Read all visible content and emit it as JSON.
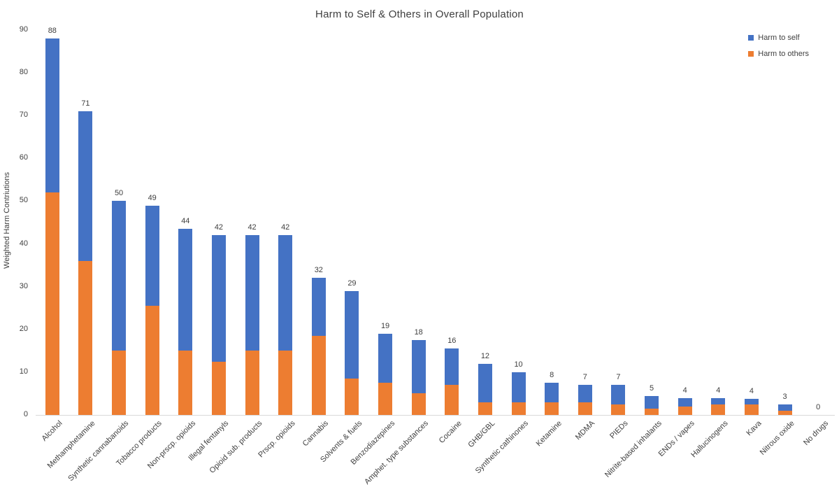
{
  "title": "Harm to Self & Others in Overall Population",
  "y_axis": {
    "title": "Weighted Harm Contriutions"
  },
  "legend": [
    {
      "label": "Harm to self",
      "color": "#4472C4"
    },
    {
      "label": "Harm to others",
      "color": "#ED7D31"
    }
  ],
  "colors": {
    "harm_to_self": "#4472C4",
    "harm_to_others": "#ED7D31",
    "axis_line": "#d9d9d9",
    "text": "#404040"
  },
  "chart_data": {
    "type": "bar",
    "stacked": true,
    "title": "Harm to Self & Others in Overall Population",
    "xlabel": "",
    "ylabel": "Weighted Harm Contriutions",
    "ylim": [
      0,
      90
    ],
    "yticks": [
      0,
      10,
      20,
      30,
      40,
      50,
      60,
      70,
      80,
      90
    ],
    "grid": false,
    "legend_position": "top-right",
    "categories": [
      "Alcohol",
      "Methamphetamine",
      "Synthetic cannabanoids",
      "Tobacco products",
      "Non-prscp. opioids",
      "Illegal fentanyls",
      "Opioid sub. products",
      "Prscp. opioids",
      "Cannabis",
      "Solvents & fuels",
      "Benzodiazepines",
      "Amphet. type substances",
      "Cocaine",
      "GHB/GBL",
      "Synthetic cathinones",
      "Ketamine",
      "MDMA",
      "PIEDs",
      "Nitrite-based inhalants",
      "ENDs / vapes",
      "Hallucinogens",
      "Kava",
      "Nitrous oxide",
      "No drugs"
    ],
    "series": [
      {
        "name": "Harm to others",
        "color": "#ED7D31",
        "values": [
          52,
          36,
          15,
          25.5,
          15,
          12.5,
          15,
          15,
          18.5,
          8.5,
          7.5,
          5,
          7,
          3,
          3,
          3,
          3,
          2.5,
          1.5,
          2,
          2.5,
          2.5,
          1,
          0
        ]
      },
      {
        "name": "Harm to self",
        "color": "#4472C4",
        "values": [
          36,
          35,
          35,
          23.5,
          28.5,
          29.5,
          27,
          27,
          13.5,
          20.5,
          11.5,
          12.5,
          8.5,
          9,
          7,
          4.5,
          4,
          4.5,
          3,
          2,
          1.5,
          1.2,
          1.5,
          0
        ]
      }
    ],
    "total_labels": [
      88,
      71,
      50,
      49,
      44,
      42,
      42,
      42,
      32,
      29,
      19,
      18,
      16,
      12,
      10,
      8,
      7,
      7,
      5,
      4,
      4,
      4,
      3,
      0
    ]
  }
}
